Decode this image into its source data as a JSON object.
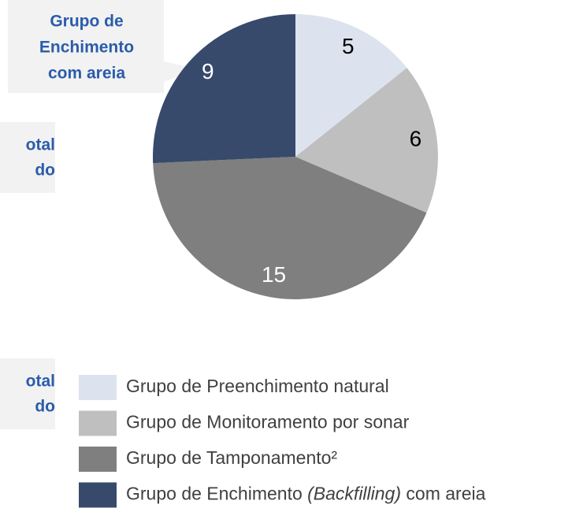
{
  "chart_data": {
    "type": "pie",
    "categories": [
      "Grupo de Preenchimento natural",
      "Grupo de Monitoramento por sonar",
      "Grupo de Tamponamento²",
      "Grupo de Enchimento (Backfilling) com areia"
    ],
    "values": [
      5,
      6,
      15,
      9
    ],
    "colors": [
      "#dce3ef",
      "#bfbfbf",
      "#7f7f7f",
      "#374a6b"
    ],
    "annotations": [
      {
        "lines": [
          "Grupo de",
          "Enchimento",
          "com areia"
        ]
      },
      {
        "lines": [
          "otal",
          "do"
        ]
      },
      {
        "lines": [
          "otal",
          "do"
        ]
      }
    ]
  }
}
